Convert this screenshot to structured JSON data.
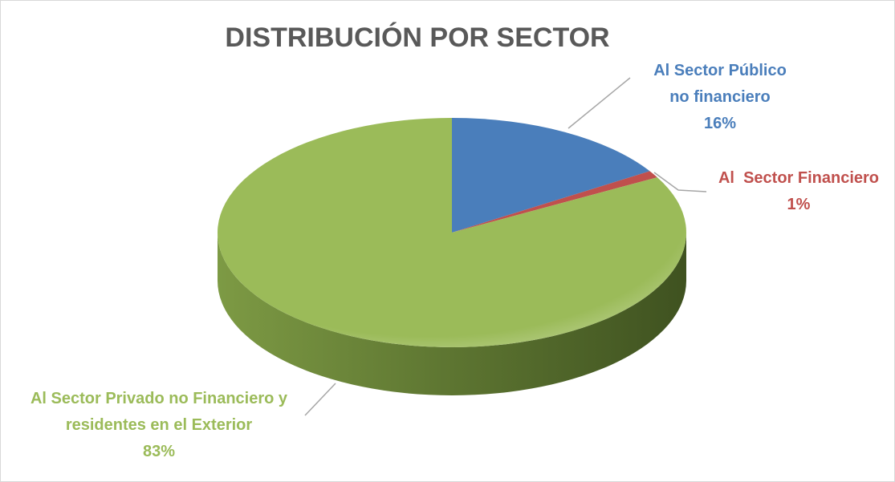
{
  "chart_data": {
    "type": "pie",
    "title": "DISTRIBUCIÓN POR SECTOR",
    "categories": [
      "Al Sector Público no financiero",
      "Al  Sector Financiero",
      "Al Sector Privado no Financiero y residentes en el Exterior"
    ],
    "values": [
      16,
      1,
      83
    ],
    "value_labels": [
      "16%",
      "1%",
      "83%"
    ],
    "colors": [
      "#4a7ebb",
      "#c0504d",
      "#9bbb59"
    ]
  }
}
